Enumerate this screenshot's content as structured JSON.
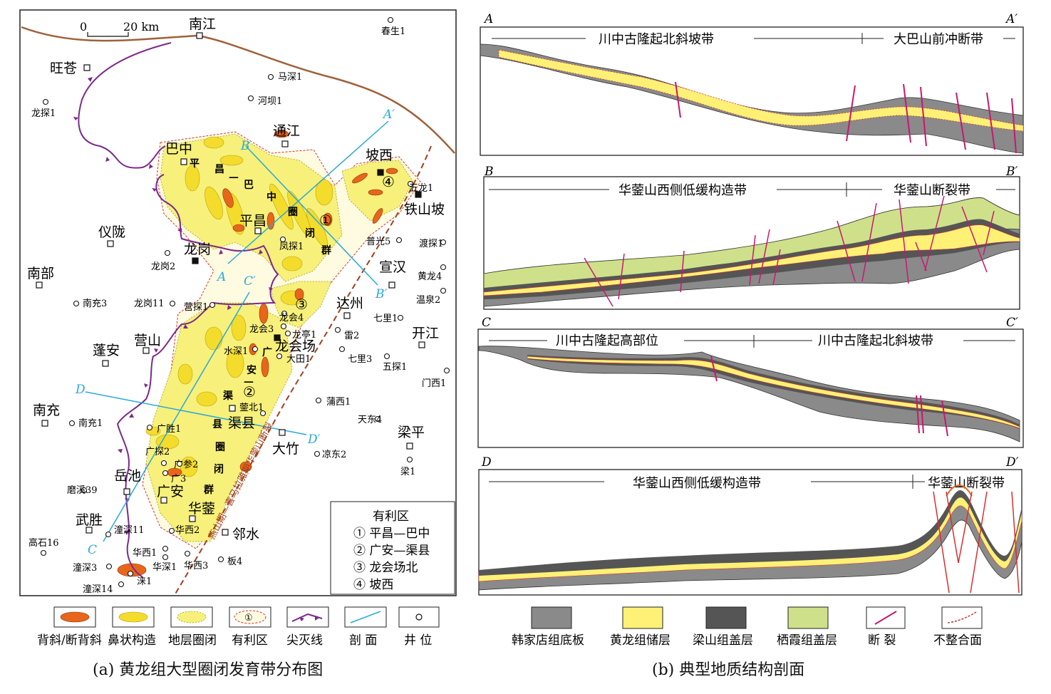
{
  "map": {
    "scale": {
      "zero": "0",
      "dist": "20 km"
    },
    "cities": [
      {
        "name": "南江"
      },
      {
        "name": "旺苍"
      },
      {
        "name": "巴中"
      },
      {
        "name": "通江"
      },
      {
        "name": "坡西"
      },
      {
        "name": "铁山坡"
      },
      {
        "name": "平昌"
      },
      {
        "name": "仪陇"
      },
      {
        "name": "龙岗"
      },
      {
        "name": "南部"
      },
      {
        "name": "宣汉"
      },
      {
        "name": "达州"
      },
      {
        "name": "开江"
      },
      {
        "name": "营山"
      },
      {
        "name": "蓬安"
      },
      {
        "name": "龙会场"
      },
      {
        "name": "南充"
      },
      {
        "name": "渠县"
      },
      {
        "name": "大竹"
      },
      {
        "name": "梁平"
      },
      {
        "name": "岳池"
      },
      {
        "name": "武胜"
      },
      {
        "name": "邻水"
      },
      {
        "name": "华蓥"
      },
      {
        "name": "广安"
      }
    ],
    "wells": [
      {
        "name": "春生1"
      },
      {
        "name": "马深1"
      },
      {
        "name": "河坝1"
      },
      {
        "name": "龙探1"
      },
      {
        "name": "五龙1"
      },
      {
        "name": "普光5"
      },
      {
        "name": "渡探1"
      },
      {
        "name": "凤探1"
      },
      {
        "name": "龙岗2"
      },
      {
        "name": "黄龙4"
      },
      {
        "name": "温泉2"
      },
      {
        "name": "南充3"
      },
      {
        "name": "龙岗11"
      },
      {
        "name": "营探1"
      },
      {
        "name": "龙会4"
      },
      {
        "name": "七里1"
      },
      {
        "name": "龙会3"
      },
      {
        "name": "龙亭1"
      },
      {
        "name": "雷2"
      },
      {
        "name": "水深1"
      },
      {
        "name": "大田1"
      },
      {
        "name": "七里3"
      },
      {
        "name": "五探1"
      },
      {
        "name": "门西1"
      },
      {
        "name": "蒲西1"
      },
      {
        "name": "蓥北1"
      },
      {
        "name": "天东4"
      },
      {
        "name": "南充1"
      },
      {
        "name": "广胜1"
      },
      {
        "name": "凉东2"
      },
      {
        "name": "广探2"
      },
      {
        "name": "广参2"
      },
      {
        "name": "梁1"
      },
      {
        "name": "广3"
      },
      {
        "name": "磨溪39"
      },
      {
        "name": "潼深11"
      },
      {
        "name": "华西2"
      },
      {
        "name": "高石16"
      },
      {
        "name": "华西1"
      },
      {
        "name": "华深1"
      },
      {
        "name": "华西3"
      },
      {
        "name": "板4"
      },
      {
        "name": "潼深3"
      },
      {
        "name": "涞1"
      },
      {
        "name": "潼深14"
      }
    ],
    "closure_groups": [
      {
        "chars": [
          "平",
          "昌",
          "—",
          "巴",
          "中",
          "圈",
          "闭",
          "群"
        ]
      },
      {
        "chars": [
          "广",
          "安",
          "—",
          "渠",
          "县",
          "圈",
          "闭",
          "群"
        ]
      }
    ],
    "zone_numbers": [
      "①",
      "②",
      "③",
      "④"
    ],
    "fault_name": "燕山期—喜马拉雅期华蓥山断裂",
    "section_labels": [
      "A",
      "A′",
      "B",
      "B′",
      "C",
      "C′",
      "D",
      "D′"
    ],
    "favorable_box": {
      "title": "有利区",
      "items": [
        "① 平昌—巴中",
        "② 广安—渠县",
        "③ 龙会场北",
        "④ 坡西"
      ]
    }
  },
  "legend_a": {
    "items": [
      {
        "label": "背斜/断背斜",
        "icon": "anticline-swatch"
      },
      {
        "label": "鼻状构造",
        "icon": "nose-structure-swatch"
      },
      {
        "label": "地层圈闭",
        "icon": "stratigraphic-trap-swatch"
      },
      {
        "label": "有利区",
        "icon": "favorable-area-swatch",
        "symbol": "①"
      },
      {
        "label": "尖灭线",
        "icon": "pinchout-line-swatch"
      },
      {
        "label": "剖 面",
        "icon": "section-line-swatch"
      },
      {
        "label": "井 位",
        "icon": "well-swatch"
      }
    ]
  },
  "sections": [
    {
      "left": "A",
      "right": "A′",
      "zones": [
        "川中古隆起北斜坡带",
        "大巴山前冲断带"
      ]
    },
    {
      "left": "B",
      "right": "B′",
      "zones": [
        "华蓥山西侧低缓构造带",
        "华蓥山断裂带"
      ]
    },
    {
      "left": "C",
      "right": "C′",
      "zones": [
        "川中古隆起高部位",
        "川中古隆起北斜坡带"
      ]
    },
    {
      "left": "D",
      "right": "D′",
      "zones": [
        "华蓥山西侧低缓构造带",
        "华蓥山断裂带"
      ]
    }
  ],
  "legend_b": {
    "items": [
      {
        "label": "韩家店组底板",
        "color": "#8a8a8a"
      },
      {
        "label": "黄龙组储层",
        "color": "#fff176"
      },
      {
        "label": "梁山组盖层",
        "color": "#555555"
      },
      {
        "label": "栖霞组盖层",
        "color": "#cfe08a"
      },
      {
        "label": "断 裂",
        "color": "#c8186e"
      },
      {
        "label": "不整合面",
        "color": "#d63030"
      }
    ]
  },
  "captions": {
    "a": "(a) 黄龙组大型圈闭发育带分布图",
    "b": "(b) 典型地质结构剖面"
  },
  "colors": {
    "anticline": "#e8661a",
    "nose": "#f4dc2c",
    "strat": "#f7f07a",
    "pinchout": "#7a2a8c",
    "section": "#29a8dc",
    "fault_brown": "#a0401c",
    "boundary": "#a0603a"
  }
}
